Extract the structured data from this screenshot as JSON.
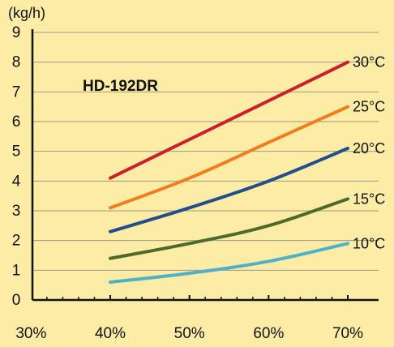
{
  "chart_data": {
    "type": "line",
    "title": "HD-192DR",
    "ylabel": "(kg/h)",
    "xlabel": "",
    "x_ticks": [
      "30%",
      "40%",
      "50%",
      "60%",
      "70%"
    ],
    "y_ticks": [
      "0",
      "1",
      "2",
      "3",
      "4",
      "5",
      "6",
      "7",
      "8",
      "9"
    ],
    "xlim": [
      30,
      70
    ],
    "ylim": [
      0,
      9
    ],
    "grid": "horizontal",
    "series": [
      {
        "name": "30°C",
        "color": "#cc1f2a",
        "x": [
          40,
          50,
          60,
          70
        ],
        "y": [
          4.1,
          5.4,
          6.7,
          8.0
        ]
      },
      {
        "name": "25°C",
        "color": "#f47c20",
        "x": [
          40,
          50,
          60,
          70
        ],
        "y": [
          3.1,
          4.1,
          5.3,
          6.5
        ]
      },
      {
        "name": "20°C",
        "color": "#234e8c",
        "x": [
          40,
          50,
          60,
          70
        ],
        "y": [
          2.3,
          3.1,
          4.0,
          5.1
        ]
      },
      {
        "name": "15°C",
        "color": "#4d6a2c",
        "x": [
          40,
          50,
          60,
          70
        ],
        "y": [
          1.4,
          1.9,
          2.5,
          3.4
        ]
      },
      {
        "name": "10°C",
        "color": "#4fb0c8",
        "x": [
          40,
          50,
          60,
          70
        ],
        "y": [
          0.6,
          0.9,
          1.3,
          1.9
        ]
      }
    ]
  }
}
